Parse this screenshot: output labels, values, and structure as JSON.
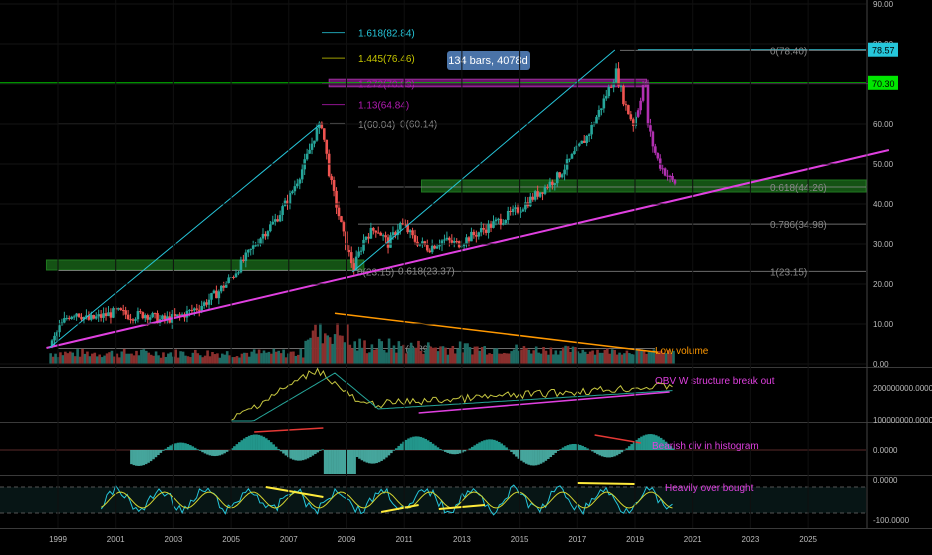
{
  "chart_data": {
    "type": "candlestick",
    "time_axis": {
      "start_year": 1998.5,
      "end_year": 2027.5,
      "tick_labels": [
        "1999",
        "2001",
        "2003",
        "2005",
        "2007",
        "2009",
        "2011",
        "2013",
        "2015",
        "2017",
        "2019",
        "2021",
        "2023",
        "2025"
      ]
    },
    "price_axis": {
      "ylim": [
        0,
        90
      ],
      "tick_labels": [
        "0.00",
        "10.00",
        "20.00",
        "30.00",
        "40.00",
        "50.00",
        "60.00",
        "70.00",
        "80.00",
        "90.00"
      ],
      "tick_values": [
        0,
        10,
        20,
        30,
        40,
        50,
        60,
        70,
        80,
        90
      ]
    },
    "last_price_badges": [
      {
        "value": 78.57,
        "label": "78.57",
        "color": "#26c6da"
      },
      {
        "value": 70.3,
        "label": "70.30",
        "color": "#00e600"
      }
    ],
    "price_path": [
      [
        1998.7,
        4.5
      ],
      [
        1999.0,
        9
      ],
      [
        1999.3,
        12
      ],
      [
        1999.6,
        13
      ],
      [
        2000.0,
        11
      ],
      [
        2000.5,
        12
      ],
      [
        2001.0,
        13
      ],
      [
        2001.5,
        12
      ],
      [
        2002.0,
        12.5
      ],
      [
        2002.5,
        11
      ],
      [
        2003.0,
        11.5
      ],
      [
        2003.5,
        13
      ],
      [
        2004.0,
        15
      ],
      [
        2004.5,
        18
      ],
      [
        2005.0,
        22
      ],
      [
        2005.5,
        27
      ],
      [
        2006.0,
        32
      ],
      [
        2006.5,
        36
      ],
      [
        2007.0,
        42
      ],
      [
        2007.5,
        50
      ],
      [
        2007.9,
        58
      ],
      [
        2008.1,
        60
      ],
      [
        2008.4,
        46
      ],
      [
        2008.8,
        34
      ],
      [
        2009.0,
        28
      ],
      [
        2009.2,
        24
      ],
      [
        2009.6,
        32
      ],
      [
        2010.0,
        34
      ],
      [
        2010.4,
        30
      ],
      [
        2010.8,
        35
      ],
      [
        2011.0,
        34
      ],
      [
        2011.3,
        31
      ],
      [
        2011.8,
        29
      ],
      [
        2012.3,
        31
      ],
      [
        2012.8,
        30
      ],
      [
        2013.3,
        32
      ],
      [
        2013.8,
        34
      ],
      [
        2014.3,
        36
      ],
      [
        2014.8,
        38
      ],
      [
        2015.3,
        41
      ],
      [
        2015.8,
        44
      ],
      [
        2016.3,
        47
      ],
      [
        2016.8,
        52
      ],
      [
        2017.3,
        57
      ],
      [
        2017.7,
        63
      ],
      [
        2018.0,
        68
      ],
      [
        2018.3,
        73
      ],
      [
        2018.6,
        65
      ],
      [
        2018.9,
        60
      ],
      [
        2019.1,
        65
      ],
      [
        2019.3,
        72
      ],
      [
        2019.4,
        60
      ],
      [
        2019.6,
        54
      ],
      [
        2019.8,
        50
      ],
      [
        2020.0,
        48
      ],
      [
        2020.2,
        46
      ],
      [
        2020.4,
        45
      ]
    ],
    "support_zones": [
      {
        "from_year": 1998.6,
        "to_year": 2009.6,
        "low": 23.5,
        "high": 26
      },
      {
        "from_year": 2011.6,
        "to_year": 2027.8,
        "low": 43,
        "high": 46
      },
      {
        "from_year": 2008.4,
        "to_year": 2019.4,
        "low": 69.3,
        "high": 71.2
      }
    ],
    "fibonacci_levels": [
      {
        "label": "1.618(82.84)",
        "value": 82.84,
        "color": "#26c6da"
      },
      {
        "label": "1.445(76.46)",
        "value": 76.46,
        "color": "#c6c600"
      },
      {
        "label": "1.272(70.09)",
        "value": 70.09,
        "color": "#b31bb3"
      },
      {
        "label": "1.13(64.84)",
        "value": 64.84,
        "color": "#b31bb3"
      },
      {
        "label": "1(60.04)",
        "value": 60.04,
        "color": "#888888"
      },
      {
        "label": "0(60.14)",
        "value": 60.14,
        "color": "#888888"
      },
      {
        "label": "0(78.40)",
        "value": 78.4,
        "color": "#888888"
      },
      {
        "label": "0.618(44.26)",
        "value": 44.26,
        "color": "#888888"
      },
      {
        "label": "0.786(34.98)",
        "value": 34.98,
        "color": "#888888"
      },
      {
        "label": "1(23.15)",
        "value": 23.15,
        "color": "#888888"
      },
      {
        "label": "0.618(23.37)",
        "value": 23.37,
        "color": "#888888"
      },
      {
        "label": "0(23.15)",
        "value": 23.15,
        "color": "#888888"
      },
      {
        "label": "1(3.89)",
        "value": 3.89,
        "color": "#888888"
      }
    ],
    "trendlines": [
      {
        "name": "rising support",
        "color": "#e040e0",
        "points": [
          [
            1998.6,
            4
          ],
          [
            2027.8,
            53.5
          ]
        ]
      },
      {
        "name": "first cycle",
        "color": "#26c6da",
        "points": [
          [
            1998.7,
            4
          ],
          [
            2008.1,
            60
          ]
        ]
      },
      {
        "name": "second cycle",
        "color": "#26c6da",
        "points": [
          [
            2009.2,
            23
          ],
          [
            2018.3,
            78.5
          ]
        ]
      }
    ],
    "volume_trend": {
      "color": "#ff9800",
      "points": [
        [
          2008.6,
          13
        ],
        [
          2019.8,
          3
        ]
      ]
    },
    "measure_label": "134 bars, 4078d",
    "annotations": {
      "low_volume": "Low volume",
      "obv": "OBV W structure break out",
      "histogram": "Bearish div in histogram",
      "overbought": "Heavily over bought"
    },
    "obv_panel": {
      "tick_labels": [
        "200000000.0000",
        "100000000.0000"
      ]
    },
    "macd_panel": {
      "tick_labels": [
        "0.0000"
      ]
    },
    "stoch_panel": {
      "tick_labels": [
        "0.0000",
        "-100.0000"
      ]
    },
    "colors": {
      "up": "#26a69a",
      "down": "#ef5350",
      "support_zone": "#1b6e1b",
      "purple_zone": "#8e1a8e",
      "fib_grey": "#888888",
      "trend_magenta": "#e040e0",
      "trend_cyan": "#26c6da",
      "orange": "#ff9800",
      "obv_line": "#c6c640",
      "obv_ma": "#26a69a",
      "badge_green": "#00e600"
    }
  }
}
